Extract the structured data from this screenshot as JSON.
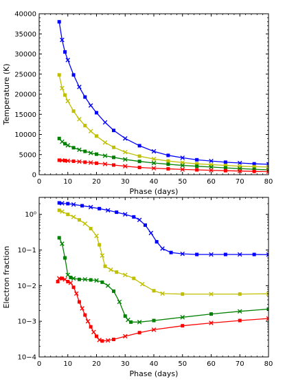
{
  "chart_data": [
    {
      "type": "line",
      "xlabel": "Phase (days)",
      "ylabel": "Temperature (K)",
      "xlim": [
        0,
        80
      ],
      "ylim": [
        0,
        40000
      ],
      "xticks": [
        0,
        10,
        20,
        30,
        40,
        50,
        60,
        70,
        80
      ],
      "yticks": [
        0,
        5000,
        10000,
        15000,
        20000,
        25000,
        30000,
        35000,
        40000
      ],
      "ytick_labels": [
        "0",
        "5000",
        "10000",
        "15000",
        "20000",
        "25000",
        "30000",
        "35000",
        "40000"
      ],
      "yscale": "linear",
      "grid": false,
      "series": [
        {
          "color": "#0000ff",
          "x": [
            7,
            8,
            9,
            10,
            12,
            14,
            16,
            18,
            20,
            23,
            26,
            30,
            35,
            40,
            45,
            50,
            55,
            60,
            65,
            70,
            75,
            80
          ],
          "y": [
            38000,
            33500,
            30500,
            28500,
            24800,
            21800,
            19300,
            17200,
            15400,
            13000,
            11000,
            9000,
            7200,
            5800,
            4800,
            4200,
            3700,
            3400,
            3100,
            2900,
            2700,
            2600
          ]
        },
        {
          "color": "#bfbf00",
          "x": [
            7,
            8,
            9,
            10,
            12,
            14,
            16,
            18,
            20,
            23,
            26,
            30,
            35,
            40,
            45,
            50,
            55,
            60,
            65,
            70,
            75,
            80
          ],
          "y": [
            24800,
            21500,
            19800,
            18300,
            15800,
            13800,
            12200,
            10800,
            9600,
            8000,
            6800,
            5600,
            4600,
            3900,
            3400,
            3000,
            2700,
            2500,
            2300,
            2100,
            2000,
            1900
          ]
        },
        {
          "color": "#008000",
          "x": [
            7,
            8,
            9,
            10,
            12,
            14,
            16,
            18,
            20,
            23,
            26,
            30,
            35,
            40,
            45,
            50,
            55,
            60,
            65,
            70,
            75,
            80
          ],
          "y": [
            9000,
            8200,
            7700,
            7300,
            6700,
            6200,
            5800,
            5400,
            5100,
            4700,
            4300,
            3800,
            3300,
            2900,
            2600,
            2300,
            2100,
            1900,
            1700,
            1500,
            1350,
            1200
          ]
        },
        {
          "color": "#ff0000",
          "x": [
            7,
            8,
            9,
            10,
            12,
            14,
            16,
            18,
            20,
            23,
            26,
            30,
            35,
            40,
            45,
            50,
            55,
            60,
            65,
            70,
            75,
            80
          ],
          "y": [
            3600,
            3550,
            3500,
            3450,
            3350,
            3250,
            3100,
            3000,
            2850,
            2650,
            2400,
            2100,
            1800,
            1600,
            1450,
            1300,
            1200,
            1100,
            1000,
            900,
            820,
            750
          ]
        }
      ]
    },
    {
      "type": "line",
      "xlabel": "Phase (days)",
      "ylabel": "Electron fraction",
      "xlim": [
        0,
        80
      ],
      "ylim": [
        0.0001,
        3
      ],
      "yscale": "log",
      "xticks": [
        0,
        10,
        20,
        30,
        40,
        50,
        60,
        70,
        80
      ],
      "yticks": [
        0.0001,
        0.001,
        0.01,
        0.1,
        1
      ],
      "ytick_labels": [
        "10−4",
        "10−3",
        "10−2",
        "10−1",
        "10⁰"
      ],
      "grid": false,
      "series": [
        {
          "color": "#0000ff",
          "x": [
            7,
            8,
            10,
            12,
            15,
            18,
            21,
            24,
            27,
            30,
            33,
            35,
            37,
            39,
            41,
            43,
            46,
            50,
            55,
            60,
            65,
            70,
            75,
            80
          ],
          "y": [
            2.1,
            2.05,
            2.0,
            1.9,
            1.75,
            1.6,
            1.45,
            1.3,
            1.15,
            1.0,
            0.85,
            0.7,
            0.5,
            0.3,
            0.17,
            0.11,
            0.085,
            0.078,
            0.075,
            0.075,
            0.075,
            0.075,
            0.075,
            0.074
          ]
        },
        {
          "color": "#bfbf00",
          "x": [
            7,
            8,
            10,
            12,
            14,
            16,
            18,
            20,
            21,
            22,
            23,
            25,
            27,
            30,
            33,
            36,
            40,
            43,
            50,
            60,
            70,
            80
          ],
          "y": [
            1.3,
            1.2,
            1.0,
            0.85,
            0.7,
            0.55,
            0.4,
            0.25,
            0.14,
            0.07,
            0.035,
            0.028,
            0.024,
            0.02,
            0.016,
            0.011,
            0.0072,
            0.006,
            0.0058,
            0.0058,
            0.0058,
            0.0059
          ]
        },
        {
          "color": "#008000",
          "x": [
            7,
            8,
            9,
            10,
            11,
            12,
            14,
            16,
            18,
            20,
            22,
            24,
            26,
            28,
            30,
            31,
            32,
            35,
            40,
            50,
            60,
            70,
            80
          ],
          "y": [
            0.22,
            0.15,
            0.06,
            0.02,
            0.017,
            0.016,
            0.015,
            0.015,
            0.0145,
            0.014,
            0.0125,
            0.01,
            0.007,
            0.0035,
            0.0014,
            0.0011,
            0.00095,
            0.00095,
            0.00105,
            0.0013,
            0.0016,
            0.0019,
            0.0022
          ]
        },
        {
          "color": "#ff0000",
          "x": [
            6.5,
            7,
            8,
            9,
            10,
            11,
            12,
            13,
            14,
            15,
            16,
            17,
            18,
            19,
            20,
            21,
            22,
            24,
            26,
            30,
            35,
            40,
            50,
            60,
            70,
            80
          ],
          "y": [
            0.013,
            0.016,
            0.016,
            0.015,
            0.013,
            0.012,
            0.009,
            0.006,
            0.0035,
            0.0023,
            0.0015,
            0.001,
            0.0007,
            0.0005,
            0.00038,
            0.0003,
            0.00028,
            0.00029,
            0.00031,
            0.00038,
            0.00048,
            0.00058,
            0.00075,
            0.0009,
            0.00105,
            0.0012
          ]
        }
      ]
    }
  ]
}
